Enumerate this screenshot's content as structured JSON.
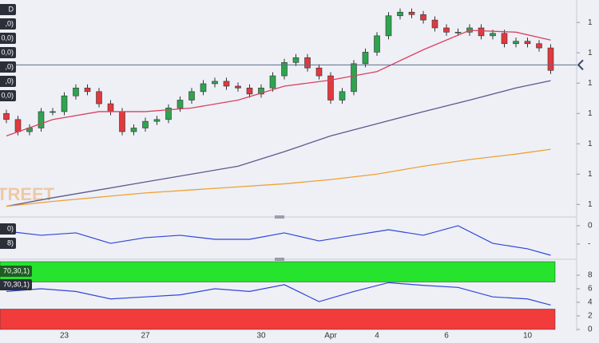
{
  "chart_data": [
    {
      "type": "candlestick",
      "categories": [
        null,
        null,
        null,
        null,
        null,
        "23",
        null,
        null,
        null,
        null,
        null,
        null,
        "27",
        null,
        null,
        null,
        null,
        null,
        null,
        null,
        null,
        null,
        "30",
        null,
        null,
        null,
        null,
        null,
        "Apr",
        null,
        null,
        null,
        "4",
        null,
        null,
        null,
        null,
        null,
        "6",
        null,
        null,
        null,
        null,
        null,
        null,
        "10",
        null,
        null
      ],
      "open": [
        1.08,
        1.079,
        1.077,
        1.0776,
        1.0803,
        1.0803,
        1.0829,
        1.0842,
        1.0836,
        1.0816,
        1.0803,
        1.077,
        1.0776,
        1.0787,
        1.079,
        1.0809,
        1.0822,
        1.0836,
        1.0849,
        1.0853,
        1.0845,
        1.0842,
        1.0832,
        1.0842,
        1.0862,
        1.0884,
        1.0892,
        1.0875,
        1.0862,
        1.0822,
        1.0836,
        1.0882,
        1.0901,
        1.0928,
        1.0961,
        1.0967,
        1.0963,
        1.0954,
        1.0941,
        1.0934,
        1.0934,
        1.0941,
        1.0928,
        1.0932,
        1.0915,
        1.0919,
        1.0915,
        1.0908
      ],
      "high": [
        1.0806,
        1.0796,
        1.0782,
        1.0809,
        1.0809,
        1.0835,
        1.0848,
        1.0848,
        1.0842,
        1.0822,
        1.0809,
        1.0782,
        1.0793,
        1.0796,
        1.0815,
        1.0828,
        1.0842,
        1.0855,
        1.0859,
        1.0859,
        1.0851,
        1.0848,
        1.0848,
        1.0868,
        1.089,
        1.0898,
        1.0898,
        1.0881,
        1.0868,
        1.0842,
        1.0888,
        1.0907,
        1.0934,
        1.0967,
        1.0973,
        1.0973,
        1.0969,
        1.096,
        1.0947,
        1.094,
        1.0947,
        1.0947,
        1.0938,
        1.0938,
        1.0925,
        1.0925,
        1.0921,
        1.0914
      ],
      "low": [
        1.0784,
        1.0764,
        1.0764,
        1.077,
        1.0797,
        1.0797,
        1.0823,
        1.083,
        1.081,
        1.0797,
        1.0764,
        1.0764,
        1.077,
        1.0781,
        1.0784,
        1.0803,
        1.0816,
        1.083,
        1.0843,
        1.0839,
        1.0836,
        1.0826,
        1.0826,
        1.0836,
        1.0856,
        1.0878,
        1.0869,
        1.0856,
        1.0816,
        1.0816,
        1.083,
        1.0876,
        1.0895,
        1.0922,
        1.0955,
        1.0957,
        1.0948,
        1.0935,
        1.0928,
        1.0928,
        1.0928,
        1.0922,
        1.0922,
        1.0909,
        1.0909,
        1.0909,
        1.0902,
        1.0865
      ],
      "close": [
        1.079,
        1.077,
        1.0776,
        1.0803,
        1.0803,
        1.0829,
        1.0842,
        1.0836,
        1.0816,
        1.0803,
        1.077,
        1.0776,
        1.0787,
        1.079,
        1.0809,
        1.0822,
        1.0836,
        1.0849,
        1.0853,
        1.0845,
        1.0842,
        1.0832,
        1.0842,
        1.0862,
        1.0884,
        1.0892,
        1.0875,
        1.0862,
        1.0822,
        1.0836,
        1.0882,
        1.0901,
        1.0928,
        1.0961,
        1.0967,
        1.0963,
        1.0954,
        1.0941,
        1.0934,
        1.0934,
        1.0941,
        1.0928,
        1.0932,
        1.0915,
        1.0919,
        1.0915,
        1.0908,
        1.0871
      ],
      "up_color": "#2ea44f",
      "down_color": "#e0393e",
      "series": [
        {
          "color": "#d9415e",
          "x": [
            0,
            4,
            8,
            12,
            16,
            20,
            24,
            28,
            32,
            36,
            40,
            44,
            47
          ],
          "values": [
            1.0763,
            1.079,
            1.0803,
            1.0803,
            1.0809,
            1.0822,
            1.0845,
            1.0855,
            1.0869,
            1.0905,
            1.0937,
            1.0934,
            1.0921
          ]
        },
        {
          "color": "#5a5a8c",
          "x": [
            0,
            4,
            8,
            12,
            16,
            20,
            24,
            28,
            32,
            36,
            40,
            44,
            47
          ],
          "values": [
            1.0647,
            1.0661,
            1.0674,
            1.0687,
            1.07,
            1.0713,
            1.0737,
            1.0763,
            1.0783,
            1.0803,
            1.0822,
            1.0842,
            1.0854
          ]
        },
        {
          "color": "#f0a030",
          "x": [
            0,
            4,
            8,
            12,
            16,
            20,
            24,
            28,
            32,
            36,
            40,
            44,
            47
          ],
          "values": [
            1.0647,
            1.0655,
            1.0662,
            1.0669,
            1.0674,
            1.0679,
            1.0684,
            1.0691,
            1.07,
            1.0713,
            1.0724,
            1.0733,
            1.0741
          ]
        }
      ],
      "price_line": 1.088,
      "ylim": [
        1.0632,
        1.0987
      ],
      "yticks": [
        {
          "value": 1.065,
          "label": "1"
        },
        {
          "value": 1.07,
          "label": "1"
        },
        {
          "value": 1.075,
          "label": "1"
        },
        {
          "value": 1.08,
          "label": "1"
        },
        {
          "value": 1.085,
          "label": "1"
        },
        {
          "value": 1.09,
          "label": "1"
        },
        {
          "value": 1.095,
          "label": "1"
        }
      ],
      "legend_labels": [
        "D",
        ",0)",
        "0,0)",
        "0,0)",
        ",0)",
        ",0)",
        "0,0)"
      ]
    },
    {
      "type": "line",
      "color": "#2f45d8",
      "x": [
        0,
        3,
        6,
        9,
        12,
        15,
        18,
        21,
        24,
        27,
        30,
        33,
        36,
        39,
        42,
        45,
        47
      ],
      "values": [
        -0.3,
        -0.52,
        -0.39,
        -0.96,
        -0.65,
        -0.52,
        -0.74,
        -0.74,
        -0.39,
        -0.83,
        -0.52,
        -0.22,
        -0.52,
        0,
        -0.96,
        -1.26,
        -1.61
      ],
      "ylim": [
        -1.74,
        0.26
      ],
      "yticks": [
        0,
        {
          "value": -1,
          "label": "-"
        }
      ],
      "legend_labels": [
        "0)",
        "8)"
      ]
    },
    {
      "type": "line",
      "color": "#2f45d8",
      "x": [
        0,
        3,
        6,
        9,
        12,
        15,
        18,
        21,
        24,
        27,
        30,
        33,
        36,
        39,
        42,
        45,
        47
      ],
      "values": [
        56,
        60,
        56,
        45,
        48,
        51,
        60,
        56,
        66,
        41,
        56,
        69,
        65,
        62,
        48,
        45,
        36
      ],
      "bands": [
        {
          "from": 70,
          "to": 100,
          "color": "#26e32e"
        },
        {
          "from": 0,
          "to": 30,
          "color": "#f23b3b"
        }
      ],
      "ylim": [
        0,
        100
      ],
      "yticks": [
        {
          "value": 80,
          "label": "8"
        },
        {
          "value": 60,
          "label": "6"
        },
        {
          "value": 40,
          "label": "4"
        },
        {
          "value": 20,
          "label": "2"
        },
        0
      ],
      "legend_labels": [
        "70,30,1)",
        "70,30,1)"
      ]
    }
  ],
  "watermark": "TREET"
}
